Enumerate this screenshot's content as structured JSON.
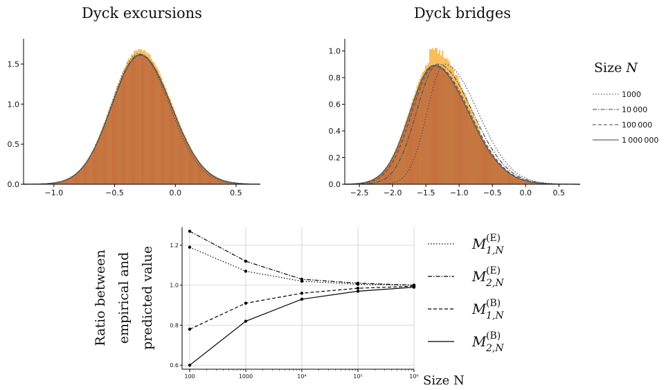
{
  "chart_data": [
    {
      "type": "histogram",
      "title": "Dyck excursions",
      "xlim": [
        -1.25,
        0.7
      ],
      "ylim": [
        0,
        1.78
      ],
      "xticks": [
        -1.0,
        -0.5,
        0.0,
        0.5
      ],
      "xtick_labels": [
        "−1.0",
        "−0.5",
        "0.0",
        "0.5"
      ],
      "yticks": [
        0.0,
        0.5,
        1.0,
        1.5
      ],
      "ytick_labels": [
        "0.0",
        "0.5",
        "1.0",
        "1.5"
      ],
      "density": {
        "center": -0.29,
        "left_sigma": 0.235,
        "right_sigma": 0.258,
        "peak": 1.62
      },
      "curves": [
        {
          "size": "1000",
          "shift": -0.01,
          "scale": 0.97,
          "peak": 1.63
        },
        {
          "size": "10000",
          "shift": 0.0,
          "scale": 1.0,
          "peak": 1.62
        },
        {
          "size": "100000",
          "shift": 0.0,
          "scale": 1.0,
          "peak": 1.61
        },
        {
          "size": "1000000",
          "shift": 0.0,
          "scale": 1.0,
          "peak": 1.61
        }
      ]
    },
    {
      "type": "histogram",
      "title": "Dyck bridges",
      "xlim": [
        -2.72,
        0.82
      ],
      "ylim": [
        0,
        1.07
      ],
      "xticks": [
        -2.5,
        -2.0,
        -1.5,
        -1.0,
        -0.5,
        0.0,
        0.5
      ],
      "xtick_labels": [
        "−2.5",
        "−2.0",
        "−1.5",
        "−1.0",
        "−0.5",
        "0.0",
        "0.5"
      ],
      "yticks": [
        0.0,
        0.2,
        0.4,
        0.6,
        0.8,
        1.0
      ],
      "ytick_labels": [
        "0.0",
        "0.2",
        "0.4",
        "0.6",
        "0.8",
        "1.0"
      ],
      "density": {
        "center": -1.38,
        "left_sigma": 0.36,
        "right_sigma": 0.52,
        "peak": 0.9
      },
      "curves": [
        {
          "size": "1000",
          "center": -1.22,
          "left_sigma": 0.26,
          "right_sigma": 0.5,
          "peak": 0.9
        },
        {
          "size": "10000",
          "center": -1.32,
          "left_sigma": 0.32,
          "right_sigma": 0.52,
          "peak": 0.9
        },
        {
          "size": "100000",
          "center": -1.36,
          "left_sigma": 0.35,
          "right_sigma": 0.52,
          "peak": 0.89
        },
        {
          "size": "1000000",
          "center": -1.38,
          "left_sigma": 0.36,
          "right_sigma": 0.52,
          "peak": 0.89
        }
      ]
    },
    {
      "type": "line",
      "xlabel": "Size N",
      "ylabel_lines": [
        "Ratio between",
        "empirical and",
        "predicted value"
      ],
      "x": [
        100,
        1000,
        10000,
        100000,
        1000000
      ],
      "xtick_labels": [
        "100",
        "1000",
        "10⁴",
        "10⁵",
        "10⁶"
      ],
      "yticks": [
        0.6,
        0.8,
        1.0,
        1.2
      ],
      "ytick_labels": [
        "0.6",
        "0.8",
        "1.0",
        "1.2"
      ],
      "ylim": [
        0.58,
        1.29
      ],
      "series": [
        {
          "name": "M1E",
          "values": [
            1.19,
            1.07,
            1.02,
            1.005,
            1.0
          ]
        },
        {
          "name": "M2E",
          "values": [
            1.27,
            1.12,
            1.03,
            1.01,
            1.0
          ]
        },
        {
          "name": "M1B",
          "values": [
            0.78,
            0.91,
            0.96,
            0.985,
            0.995
          ]
        },
        {
          "name": "M2B",
          "values": [
            0.6,
            0.82,
            0.93,
            0.97,
            0.99
          ]
        }
      ]
    }
  ],
  "legend_top": {
    "title_main": "Size",
    "title_var": "N",
    "entries": [
      {
        "label": "1000",
        "dash": "1.5,2.5",
        "color": "#666666"
      },
      {
        "label": "10 000",
        "dash": "6,2,1.5,2",
        "color": "#666666"
      },
      {
        "label": "100 000",
        "dash": "5,3",
        "color": "#666666"
      },
      {
        "label": "1 000 000",
        "dash": "",
        "color": "#666666"
      }
    ]
  },
  "legend_bottom": {
    "entries": [
      {
        "base": "M",
        "sub": "1,N",
        "sup": "(E)",
        "dash": "1.5,2.5"
      },
      {
        "base": "M",
        "sub": "2,N",
        "sup": "(E)",
        "dash": "6,2,1.5,2"
      },
      {
        "base": "M",
        "sub": "1,N",
        "sup": "(B)",
        "dash": "5,3"
      },
      {
        "base": "M",
        "sub": "2,N",
        "sup": "(B)",
        "dash": ""
      }
    ]
  },
  "colors": {
    "hist_orange": "#f5a623",
    "hist_green": "#7fbf4f",
    "hist_rust": "#c8683e",
    "hist_brown": "#a8724a",
    "curve": "#555555",
    "line": "#000000",
    "grid": "#cccccc"
  }
}
